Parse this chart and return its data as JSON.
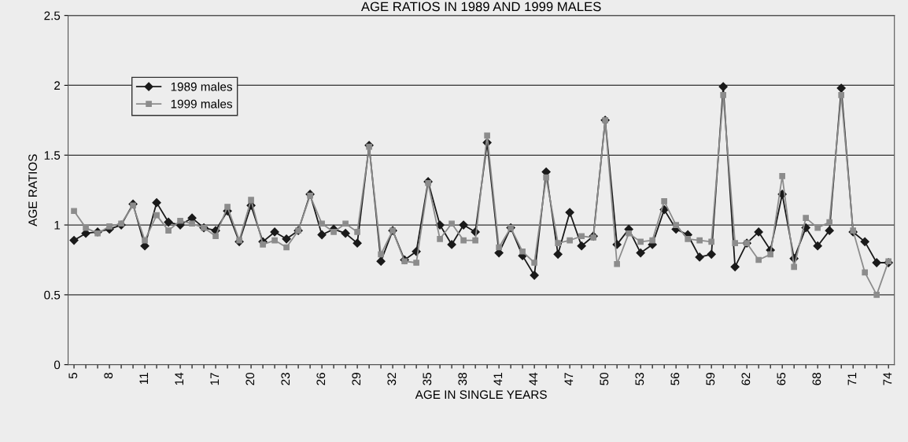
{
  "chart_data": {
    "type": "line",
    "title": "AGE RATIOS IN 1989 AND 1999 MALES",
    "xlabel": "AGE IN SINGLE YEARS",
    "ylabel": "AGE RATIOS",
    "categories": [
      "5",
      null,
      null,
      "8",
      null,
      null,
      "11",
      null,
      null,
      "14",
      null,
      null,
      "17",
      null,
      null,
      "20",
      null,
      null,
      "23",
      null,
      null,
      "26",
      null,
      null,
      "29",
      null,
      null,
      "32",
      null,
      null,
      "35",
      null,
      null,
      "38",
      null,
      null,
      "41",
      null,
      null,
      "44",
      null,
      null,
      "47",
      null,
      null,
      "50",
      null,
      null,
      "53",
      null,
      null,
      "56",
      null,
      null,
      "59",
      null,
      null,
      "62",
      null,
      null,
      "65",
      null,
      null,
      "68",
      null,
      null,
      "71",
      null,
      null,
      "74"
    ],
    "series": [
      {
        "name": "1989 males",
        "color": "#1a1a1a",
        "marker": "diamond",
        "values": [
          0.89,
          0.94,
          0.95,
          0.97,
          1.0,
          1.15,
          0.85,
          1.16,
          1.02,
          1.0,
          1.05,
          0.98,
          0.96,
          1.1,
          0.88,
          1.14,
          0.88,
          0.95,
          0.9,
          0.96,
          1.22,
          0.93,
          0.97,
          0.94,
          0.87,
          1.57,
          0.74,
          0.96,
          0.75,
          0.81,
          1.31,
          1.0,
          0.86,
          1.0,
          0.95,
          1.59,
          0.8,
          0.98,
          0.78,
          0.64,
          1.38,
          0.79,
          1.09,
          0.85,
          0.92,
          1.75,
          0.86,
          0.97,
          0.8,
          0.86,
          1.11,
          0.97,
          0.93,
          0.77,
          0.79,
          1.99,
          0.7,
          0.87,
          0.95,
          0.82,
          1.22,
          0.76,
          0.98,
          0.85,
          0.96,
          1.98,
          0.95,
          0.88,
          0.73,
          0.73
        ]
      },
      {
        "name": "1999 males",
        "color": "#8c8c8c",
        "marker": "square",
        "values": [
          1.1,
          0.98,
          0.94,
          0.99,
          1.01,
          1.14,
          0.89,
          1.07,
          0.96,
          1.03,
          1.01,
          0.98,
          0.92,
          1.13,
          0.89,
          1.18,
          0.86,
          0.89,
          0.84,
          0.96,
          1.21,
          1.01,
          0.95,
          1.01,
          0.95,
          1.56,
          0.79,
          0.96,
          0.74,
          0.73,
          1.3,
          0.9,
          1.01,
          0.89,
          0.89,
          1.64,
          0.84,
          0.98,
          0.81,
          0.73,
          1.34,
          0.87,
          0.89,
          0.92,
          0.91,
          1.75,
          0.72,
          0.94,
          0.88,
          0.89,
          1.17,
          1.0,
          0.9,
          0.89,
          0.88,
          1.93,
          0.87,
          0.87,
          0.75,
          0.79,
          1.35,
          0.7,
          1.05,
          0.98,
          1.02,
          1.93,
          0.96,
          0.66,
          0.5,
          0.74
        ]
      }
    ],
    "ylim": [
      0,
      2.5
    ],
    "yticks": [
      0,
      0.5,
      1,
      1.5,
      2,
      2.5
    ],
    "grid": "y",
    "legend": "top left"
  }
}
